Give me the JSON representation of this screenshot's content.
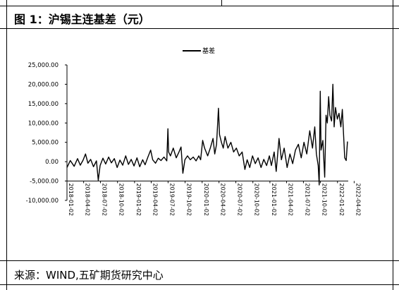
{
  "header": {
    "title": "图 1：沪锡主连基差（元）"
  },
  "footer": {
    "source": "来源：WIND,五矿期货研究中心"
  },
  "chart_data": {
    "type": "line",
    "title": "",
    "xlabel": "",
    "ylabel": "",
    "legend": {
      "position": "top-center",
      "entries": [
        "基差"
      ]
    },
    "grid": false,
    "ylim": [
      -10000,
      25000
    ],
    "y_ticks": [
      -10000,
      -5000,
      0,
      5000,
      10000,
      15000,
      20000,
      25000
    ],
    "y_tick_labels": [
      "-10,000.00",
      "-5,000.00",
      "0.00",
      "5,000.00",
      "10,000.00",
      "15,000.00",
      "20,000.00",
      "25,000.00"
    ],
    "x_ticks": [
      "2018-01-02",
      "2018-04-02",
      "2018-07-02",
      "2018-10-02",
      "2019-01-02",
      "2019-04-02",
      "2019-07-02",
      "2019-10-02",
      "2020-01-02",
      "2020-04-02",
      "2020-07-02",
      "2020-10-02",
      "2021-01-02",
      "2021-04-02",
      "2021-07-02",
      "2021-10-02",
      "2022-01-02",
      "2022-04-02"
    ],
    "series": [
      {
        "name": "基差",
        "color": "#000000",
        "points": [
          [
            "2018-01-02",
            -1500
          ],
          [
            "2018-01-20",
            300
          ],
          [
            "2018-02-10",
            -1200
          ],
          [
            "2018-02-28",
            800
          ],
          [
            "2018-03-15",
            -900
          ],
          [
            "2018-03-30",
            400
          ],
          [
            "2018-04-12",
            2000
          ],
          [
            "2018-04-25",
            -400
          ],
          [
            "2018-05-10",
            600
          ],
          [
            "2018-05-25",
            -1300
          ],
          [
            "2018-06-10",
            200
          ],
          [
            "2018-06-20",
            -4800
          ],
          [
            "2018-06-30",
            -1000
          ],
          [
            "2018-07-15",
            900
          ],
          [
            "2018-07-30",
            -600
          ],
          [
            "2018-08-15",
            1200
          ],
          [
            "2018-08-30",
            -300
          ],
          [
            "2018-09-15",
            800
          ],
          [
            "2018-09-30",
            -1500
          ],
          [
            "2018-10-15",
            400
          ],
          [
            "2018-10-30",
            -900
          ],
          [
            "2018-11-15",
            1500
          ],
          [
            "2018-11-30",
            -700
          ],
          [
            "2018-12-15",
            600
          ],
          [
            "2018-12-30",
            -1100
          ],
          [
            "2019-01-15",
            1000
          ],
          [
            "2019-01-30",
            -1300
          ],
          [
            "2019-02-15",
            500
          ],
          [
            "2019-02-28",
            -800
          ],
          [
            "2019-03-15",
            1200
          ],
          [
            "2019-03-30",
            3000
          ],
          [
            "2019-04-10",
            500
          ],
          [
            "2019-04-25",
            -400
          ],
          [
            "2019-05-10",
            900
          ],
          [
            "2019-05-25",
            300
          ],
          [
            "2019-06-10",
            1200
          ],
          [
            "2019-06-25",
            200
          ],
          [
            "2019-07-01",
            8500
          ],
          [
            "2019-07-05",
            2500
          ],
          [
            "2019-07-15",
            1500
          ],
          [
            "2019-07-30",
            3500
          ],
          [
            "2019-08-15",
            1000
          ],
          [
            "2019-08-30",
            2500
          ],
          [
            "2019-09-10",
            3800
          ],
          [
            "2019-09-20",
            -3000
          ],
          [
            "2019-10-01",
            500
          ],
          [
            "2019-10-15",
            1500
          ],
          [
            "2019-10-30",
            500
          ],
          [
            "2019-11-15",
            1200
          ],
          [
            "2019-11-30",
            200
          ],
          [
            "2019-12-15",
            1500
          ],
          [
            "2019-12-25",
            500
          ],
          [
            "2020-01-05",
            5500
          ],
          [
            "2020-01-15",
            3500
          ],
          [
            "2020-02-01",
            1500
          ],
          [
            "2020-02-15",
            3500
          ],
          [
            "2020-03-01",
            6000
          ],
          [
            "2020-03-10",
            2000
          ],
          [
            "2020-03-20",
            4500
          ],
          [
            "2020-03-30",
            13800
          ],
          [
            "2020-04-05",
            7000
          ],
          [
            "2020-04-15",
            5000
          ],
          [
            "2020-04-25",
            3500
          ],
          [
            "2020-05-05",
            6500
          ],
          [
            "2020-05-20",
            3500
          ],
          [
            "2020-06-05",
            5000
          ],
          [
            "2020-06-20",
            2500
          ],
          [
            "2020-07-05",
            3500
          ],
          [
            "2020-07-20",
            1500
          ],
          [
            "2020-08-05",
            2500
          ],
          [
            "2020-08-20",
            -2000
          ],
          [
            "2020-09-01",
            500
          ],
          [
            "2020-09-15",
            -1500
          ],
          [
            "2020-09-30",
            1500
          ],
          [
            "2020-10-15",
            -500
          ],
          [
            "2020-10-30",
            1000
          ],
          [
            "2020-11-15",
            -1500
          ],
          [
            "2020-11-30",
            600
          ],
          [
            "2020-12-15",
            -1000
          ],
          [
            "2020-12-30",
            1500
          ],
          [
            "2021-01-10",
            -1000
          ],
          [
            "2021-01-25",
            2500
          ],
          [
            "2021-02-05",
            -2500
          ],
          [
            "2021-02-20",
            6000
          ],
          [
            "2021-03-05",
            500
          ],
          [
            "2021-03-20",
            3500
          ],
          [
            "2021-04-05",
            -1500
          ],
          [
            "2021-04-20",
            2000
          ],
          [
            "2021-05-05",
            -500
          ],
          [
            "2021-05-20",
            3000
          ],
          [
            "2021-06-05",
            4500
          ],
          [
            "2021-06-20",
            1000
          ],
          [
            "2021-07-05",
            5000
          ],
          [
            "2021-07-20",
            2000
          ],
          [
            "2021-08-05",
            8000
          ],
          [
            "2021-08-20",
            3500
          ],
          [
            "2021-09-01",
            9000
          ],
          [
            "2021-09-10",
            2000
          ],
          [
            "2021-09-20",
            -1000
          ],
          [
            "2021-09-25",
            -6000
          ],
          [
            "2021-10-01",
            18200
          ],
          [
            "2021-10-05",
            3000
          ],
          [
            "2021-10-15",
            5500
          ],
          [
            "2021-10-25",
            -4000
          ],
          [
            "2021-11-01",
            12000
          ],
          [
            "2021-11-08",
            10000
          ],
          [
            "2021-11-15",
            16800
          ],
          [
            "2021-11-22",
            12000
          ],
          [
            "2021-12-01",
            10500
          ],
          [
            "2021-12-08",
            20000
          ],
          [
            "2021-12-15",
            9000
          ],
          [
            "2021-12-22",
            14000
          ],
          [
            "2022-01-01",
            11000
          ],
          [
            "2022-01-10",
            12500
          ],
          [
            "2022-01-20",
            9000
          ],
          [
            "2022-01-28",
            13500
          ],
          [
            "2022-02-10",
            1000
          ],
          [
            "2022-02-18",
            300
          ],
          [
            "2022-02-25",
            5200
          ]
        ]
      }
    ]
  }
}
